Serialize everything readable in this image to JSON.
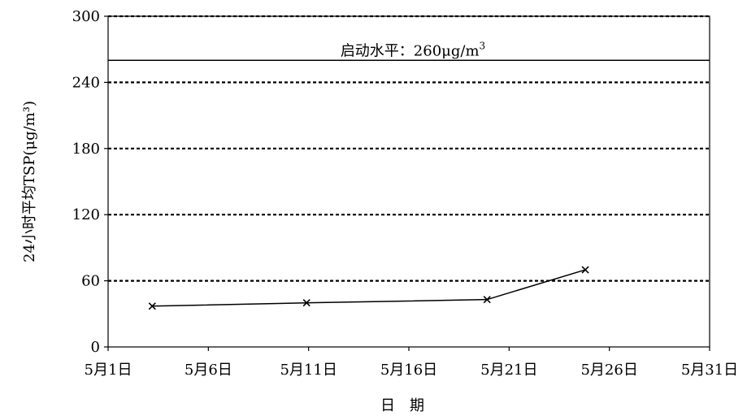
{
  "chart_data": {
    "type": "line",
    "ylabel": "24小时平均TSP(μg/m³)",
    "xlabel": "日　期",
    "x_ticks": [
      {
        "day": 1,
        "label": "5月1日"
      },
      {
        "day": 6,
        "label": "5月6日"
      },
      {
        "day": 11,
        "label": "5月11日"
      },
      {
        "day": 16,
        "label": "5月16日"
      },
      {
        "day": 21,
        "label": "5月21日"
      },
      {
        "day": 26,
        "label": "5月26日"
      },
      {
        "day": 31,
        "label": "5月31日"
      }
    ],
    "xlim": [
      1,
      31
    ],
    "ylim": [
      0,
      300
    ],
    "y_ticks": [
      0,
      60,
      120,
      180,
      240,
      300
    ],
    "grid": "dotted horizontal at 60, 120, 180, 240, 300",
    "series": [
      {
        "marker": "x",
        "points": [
          {
            "x": 3.2,
            "y": 37
          },
          {
            "x": 10.9,
            "y": 40
          },
          {
            "x": 19.9,
            "y": 43
          },
          {
            "x": 24.8,
            "y": 70
          }
        ]
      }
    ],
    "threshold": {
      "value": 260,
      "label": "启动水平：260μg/m",
      "label_sup": "3"
    }
  }
}
